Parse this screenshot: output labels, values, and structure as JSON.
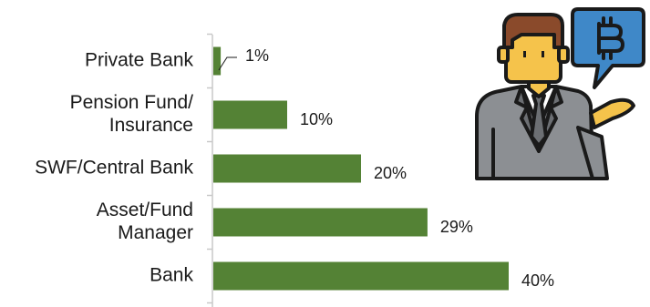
{
  "chart_data": {
    "type": "bar",
    "orientation": "horizontal",
    "categories": [
      [
        "Private Bank"
      ],
      [
        "Pension Fund/",
        "Insurance"
      ],
      [
        "SWF/Central Bank"
      ],
      [
        "Asset/Fund",
        "Manager"
      ],
      [
        "Bank"
      ]
    ],
    "values": [
      1,
      10,
      20,
      29,
      40
    ],
    "value_labels": [
      "1%",
      "10%",
      "20%",
      "29%",
      "40%"
    ],
    "unit": "%",
    "xlim": [
      0,
      40
    ],
    "bar_color": "#548235",
    "grid": false,
    "legend": "none"
  },
  "illustration": {
    "icon": "businessman-bitcoin-icon",
    "colors": {
      "outline": "#1a1a1a",
      "suit": "#8c8f93",
      "suit_dark": "#6c6f73",
      "skin": "#f5c34b",
      "hair": "#8a4a2b",
      "shirt": "#ffffff",
      "tie": "#6c6f73",
      "bubble": "#3f88c8"
    }
  }
}
